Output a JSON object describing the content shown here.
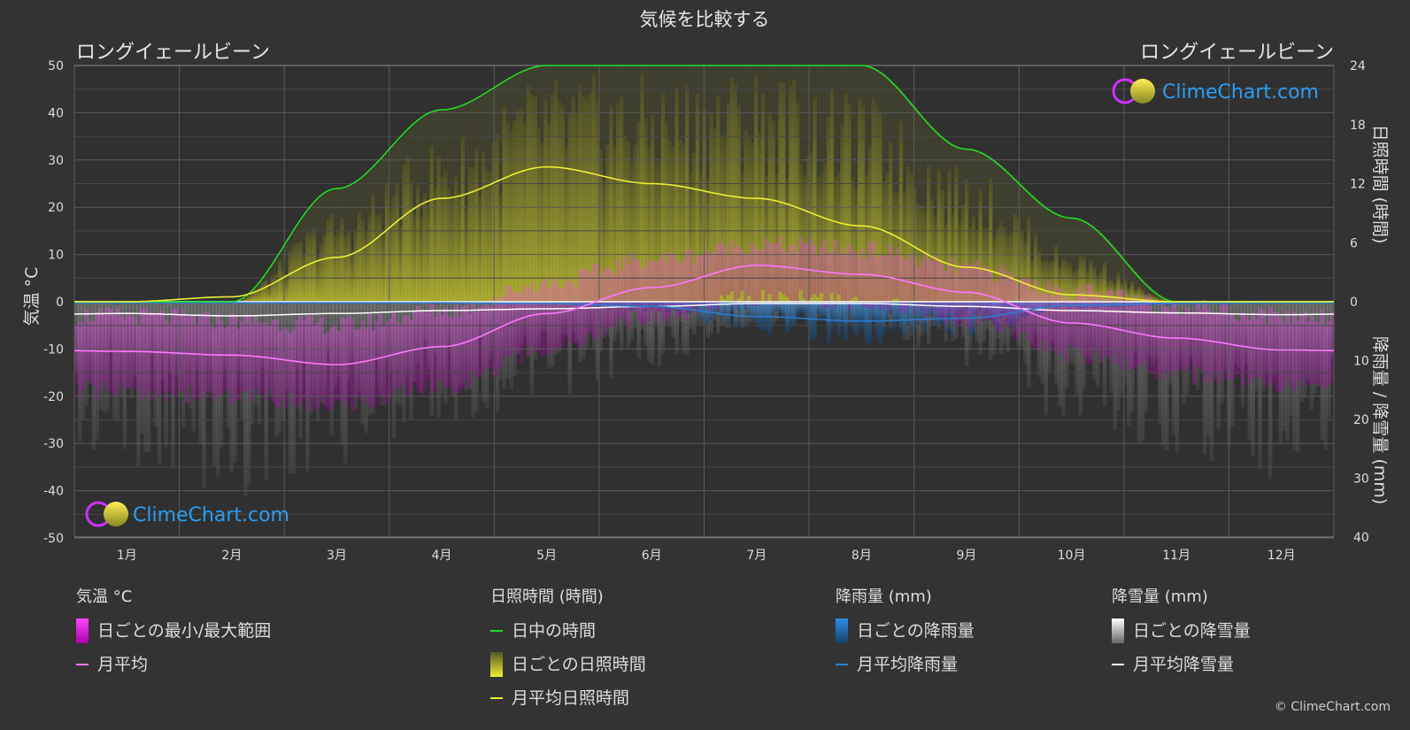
{
  "title": "気候を比較する",
  "location_left": "ロングイェールビーン",
  "location_right": "ロングイェールビーン",
  "logo_text": "ClimeChart.com",
  "copyright": "© ClimeChart.com",
  "colors": {
    "background": "#333333",
    "daylight": "#22dd22",
    "sunshine_avg": "#eeee33",
    "sunshine_daily": "#a8a830",
    "temp_range": "#dd22dd",
    "temp_avg": "#ff77ff",
    "rain": "#2a7fd0",
    "snow": "#ffffff"
  },
  "chart_data": {
    "type": "line",
    "title": "気候を比較する",
    "x_categories": [
      "1月",
      "2月",
      "3月",
      "4月",
      "5月",
      "6月",
      "7月",
      "8月",
      "9月",
      "10月",
      "11月",
      "12月"
    ],
    "y_left": {
      "label": "気温 °C",
      "range": [
        -50,
        50
      ],
      "ticks": [
        50,
        40,
        30,
        20,
        10,
        0,
        -10,
        -20,
        -30,
        -40,
        -50
      ]
    },
    "y_right_top": {
      "label": "日照時間 (時間)",
      "range": [
        0,
        24
      ],
      "ticks": [
        24,
        18,
        12,
        6,
        0
      ]
    },
    "y_right_bottom": {
      "label": "降雨量 / 降雪量 (mm)",
      "range": [
        0,
        40
      ],
      "ticks": [
        0,
        10,
        20,
        30,
        40
      ]
    },
    "grid": true,
    "series": [
      {
        "name": "日中の時間",
        "unit": "時間",
        "values": [
          0,
          0,
          11.5,
          19.5,
          24,
          24,
          24,
          24,
          15.5,
          8.5,
          0,
          0
        ]
      },
      {
        "name": "月平均日照時間",
        "unit": "時間",
        "values": [
          0,
          0.5,
          4.5,
          10.5,
          13.7,
          12.0,
          10.5,
          7.7,
          3.5,
          0.7,
          0,
          0
        ]
      },
      {
        "name": "月平均",
        "unit": "°C",
        "values": [
          -10.5,
          -11.3,
          -13.3,
          -9.5,
          -2.5,
          3.0,
          7.7,
          5.8,
          2.0,
          -4.5,
          -7.7,
          -10.2
        ]
      },
      {
        "name": "月平均降雨量",
        "unit": "mm",
        "values": [
          0.2,
          0.2,
          0.2,
          0.2,
          0.3,
          0.8,
          2.5,
          3.3,
          2.8,
          0.6,
          0.3,
          0.2
        ]
      },
      {
        "name": "月平均降雪量",
        "unit": "mm",
        "values": [
          2.0,
          2.4,
          2.0,
          1.5,
          1.2,
          0.8,
          0.3,
          0.3,
          0.8,
          1.5,
          1.9,
          2.2
        ]
      }
    ],
    "daily_temp_range": {
      "name": "日ごとの最小/最大範囲",
      "min": [
        -17,
        -18,
        -20,
        -16,
        -8,
        -1,
        3,
        2,
        -2,
        -9,
        -13,
        -16
      ],
      "max": [
        -5,
        -6,
        -7,
        -4,
        2,
        7,
        10,
        9,
        5,
        0,
        -3,
        -5
      ]
    },
    "daily_sunshine_max": {
      "name": "日ごとの日照時間",
      "values": [
        0,
        0.5,
        9,
        16,
        22,
        22,
        23,
        20,
        13,
        5,
        0,
        0
      ]
    }
  },
  "legend": {
    "groups": [
      {
        "header": "気温 °C",
        "items": [
          {
            "type": "rect",
            "label": "日ごとの最小/最大範囲",
            "color": "#dd22dd"
          },
          {
            "type": "line",
            "label": "月平均",
            "color": "#ff77ff"
          }
        ]
      },
      {
        "header": "日照時間 (時間)",
        "items": [
          {
            "type": "line",
            "label": "日中の時間",
            "color": "#22dd22"
          },
          {
            "type": "rect",
            "label": "日ごとの日照時間",
            "color": "#c8c830"
          },
          {
            "type": "line",
            "label": "月平均日照時間",
            "color": "#eeee33"
          }
        ]
      },
      {
        "header": "降雨量 (mm)",
        "items": [
          {
            "type": "rect",
            "label": "日ごとの降雨量",
            "color": "#2a7fd0"
          },
          {
            "type": "line",
            "label": "月平均降雨量",
            "color": "#2a7fd0"
          }
        ]
      },
      {
        "header": "降雪量 (mm)",
        "items": [
          {
            "type": "rect",
            "label": "日ごとの降雪量",
            "color": "#dddddd"
          },
          {
            "type": "line",
            "label": "月平均降雪量",
            "color": "#ffffff"
          }
        ]
      }
    ]
  }
}
